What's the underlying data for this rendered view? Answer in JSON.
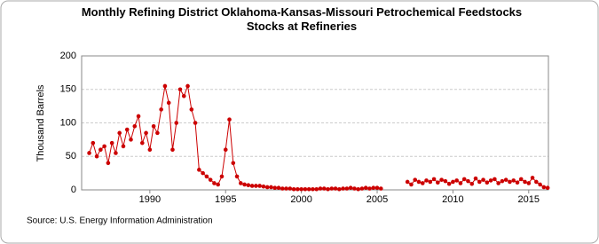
{
  "chart_data": {
    "type": "line",
    "title": "Monthly Refining District Oklahoma-Kansas-Missouri Petrochemical Feedstocks Stocks at Refineries",
    "y_label": "Thousand Barrels",
    "source": "Source: U.S. Energy Information Administration",
    "x": [
      1986,
      1986.25,
      1986.5,
      1986.75,
      1987,
      1987.25,
      1987.5,
      1987.75,
      1988,
      1988.25,
      1988.5,
      1988.75,
      1989,
      1989.25,
      1989.5,
      1989.75,
      1990,
      1990.25,
      1990.5,
      1990.75,
      1991,
      1991.25,
      1991.5,
      1991.75,
      1992,
      1992.25,
      1992.5,
      1992.75,
      1993,
      1993.25,
      1993.5,
      1993.75,
      1994,
      1994.25,
      1994.5,
      1994.75,
      1995,
      1995.25,
      1995.5,
      1995.75,
      1996,
      1996.25,
      1996.5,
      1996.75,
      1997,
      1997.25,
      1997.5,
      1997.75,
      1998,
      1998.25,
      1998.5,
      1998.75,
      1999,
      1999.25,
      1999.5,
      1999.75,
      2000,
      2000.25,
      2000.5,
      2000.75,
      2001,
      2001.25,
      2001.5,
      2001.75,
      2002,
      2002.25,
      2002.5,
      2002.75,
      2003,
      2003.25,
      2003.5,
      2003.75,
      2004,
      2004.25,
      2004.5,
      2004.75,
      2005,
      2005.25,
      2005.5,
      2005.75,
      2006,
      2006.25,
      2006.5,
      2006.75,
      2007,
      2007.25,
      2007.5,
      2007.75,
      2008,
      2008.25,
      2008.5,
      2008.75,
      2009,
      2009.25,
      2009.5,
      2009.75,
      2010,
      2010.25,
      2010.5,
      2010.75,
      2011,
      2011.25,
      2011.5,
      2011.75,
      2012,
      2012.25,
      2012.5,
      2012.75,
      2013,
      2013.25,
      2013.5,
      2013.75,
      2014,
      2014.25,
      2014.5,
      2014.75,
      2015,
      2015.25,
      2015.5,
      2015.75,
      2016,
      2016.25
    ],
    "series": [
      {
        "name": "Petrochemical Feedstocks Stocks",
        "color": "#cc0000",
        "values": [
          55,
          70,
          50,
          60,
          65,
          40,
          70,
          55,
          85,
          65,
          90,
          75,
          95,
          110,
          70,
          85,
          60,
          95,
          85,
          120,
          155,
          130,
          60,
          100,
          150,
          140,
          155,
          120,
          100,
          30,
          25,
          20,
          15,
          10,
          8,
          20,
          60,
          105,
          40,
          20,
          10,
          8,
          7,
          6,
          6,
          6,
          5,
          4,
          4,
          3,
          3,
          2,
          2,
          2,
          1,
          1,
          1,
          1,
          1,
          1,
          1,
          2,
          2,
          1,
          2,
          2,
          1,
          2,
          2,
          3,
          2,
          1,
          2,
          3,
          2,
          3,
          3,
          2,
          null,
          null,
          null,
          null,
          null,
          null,
          12,
          8,
          15,
          12,
          10,
          14,
          12,
          16,
          11,
          15,
          13,
          9,
          12,
          14,
          10,
          16,
          13,
          9,
          17,
          12,
          15,
          11,
          14,
          16,
          10,
          13,
          15,
          12,
          14,
          11,
          16,
          12,
          10,
          18,
          12,
          8,
          4,
          3
        ]
      }
    ],
    "xlim": [
      1985.5,
      2016.3
    ],
    "xticks": [
      1990,
      1995,
      2000,
      2005,
      2010,
      2015
    ],
    "ylim": [
      0,
      200
    ],
    "yticks": [
      0,
      50,
      100,
      150,
      200
    ],
    "grid": true
  }
}
